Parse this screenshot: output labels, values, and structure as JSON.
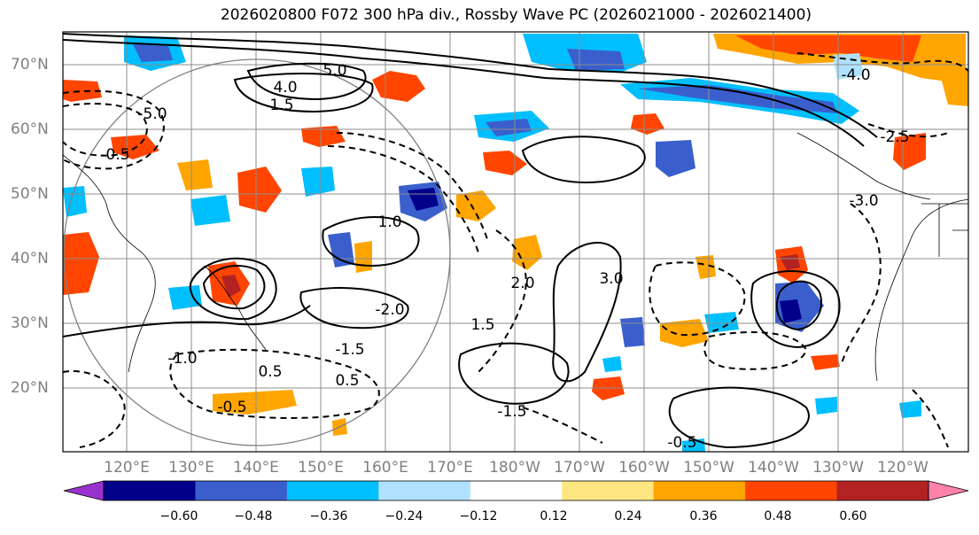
{
  "title": "2026020800 F072 300 hPa div., Rossby Wave PC (2026021000 - 2026021400)",
  "axes": {
    "lat_labels": [
      "70°N",
      "60°N",
      "50°N",
      "40°N",
      "30°N",
      "20°N"
    ],
    "lon_labels": [
      "120°E",
      "130°E",
      "140°E",
      "150°E",
      "160°E",
      "170°E",
      "180°W",
      "170°W",
      "160°W",
      "150°W",
      "140°W",
      "130°W",
      "120°W"
    ]
  },
  "colorbar": {
    "tick_labels": [
      "−0.60",
      "−0.48",
      "−0.36",
      "−0.24",
      "−0.12",
      "0.12",
      "0.24",
      "0.36",
      "0.48",
      "0.60"
    ],
    "colors": [
      "#9932cc",
      "#00008b",
      "#3a5fcd",
      "#00bfff",
      "#b0e2ff",
      "#ffffff",
      "#ffe680",
      "#ffa500",
      "#ff4500",
      "#b22222",
      "#ff82ab"
    ]
  },
  "contour_labels": [
    "5.0",
    "4.0",
    "1.5",
    "-5.0",
    "-0.5",
    "0.5",
    "-1.0",
    "1.0",
    "-2.0",
    "2.0",
    "3.0",
    "-3.0",
    "-1.5",
    "-2.5",
    "-4.0",
    "-0.5",
    "0.5",
    "-1.5",
    "1.5",
    "-0.5"
  ]
}
